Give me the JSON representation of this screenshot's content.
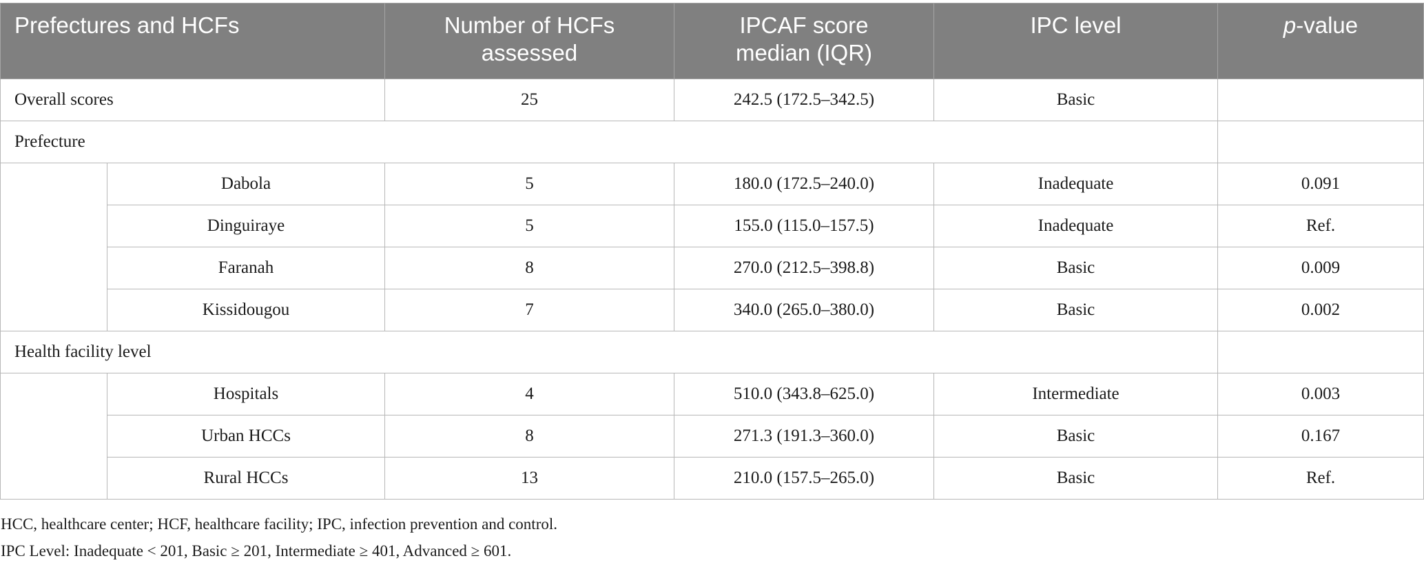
{
  "table": {
    "headers": {
      "prefectures": "Prefectures and HCFs",
      "number_line1": "Number of HCFs",
      "number_line2": "assessed",
      "score_line1": "IPCAF score",
      "score_line2": "median (IQR)",
      "ipc_level": "IPC level",
      "p_prefix": "p",
      "p_suffix": "-value"
    },
    "overall": {
      "label": "Overall scores",
      "number": "25",
      "score": "242.5 (172.5–342.5)",
      "level": "Basic",
      "p": ""
    },
    "sections": [
      {
        "title": "Prefecture",
        "rows": [
          {
            "name": "Dabola",
            "number": "5",
            "score": "180.0 (172.5–240.0)",
            "level": "Inadequate",
            "p": "0.091"
          },
          {
            "name": "Dinguiraye",
            "number": "5",
            "score": "155.0 (115.0–157.5)",
            "level": "Inadequate",
            "p": "Ref."
          },
          {
            "name": "Faranah",
            "number": "8",
            "score": "270.0 (212.5–398.8)",
            "level": "Basic",
            "p": "0.009"
          },
          {
            "name": "Kissidougou",
            "number": "7",
            "score": "340.0 (265.0–380.0)",
            "level": "Basic",
            "p": "0.002"
          }
        ]
      },
      {
        "title": "Health facility level",
        "rows": [
          {
            "name": "Hospitals",
            "number": "4",
            "score": "510.0 (343.8–625.0)",
            "level": "Intermediate",
            "p": "0.003"
          },
          {
            "name": "Urban HCCs",
            "number": "8",
            "score": "271.3 (191.3–360.0)",
            "level": "Basic",
            "p": "0.167"
          },
          {
            "name": "Rural HCCs",
            "number": "13",
            "score": "210.0 (157.5–265.0)",
            "level": "Basic",
            "p": "Ref."
          }
        ]
      }
    ]
  },
  "footnotes": {
    "abbreviations": "HCC, healthcare center; HCF, healthcare facility; IPC, infection prevention and control.",
    "levels": "IPC Level: Inadequate < 201, Basic ≥ 201, Intermediate ≥ 401, Advanced ≥ 601."
  }
}
